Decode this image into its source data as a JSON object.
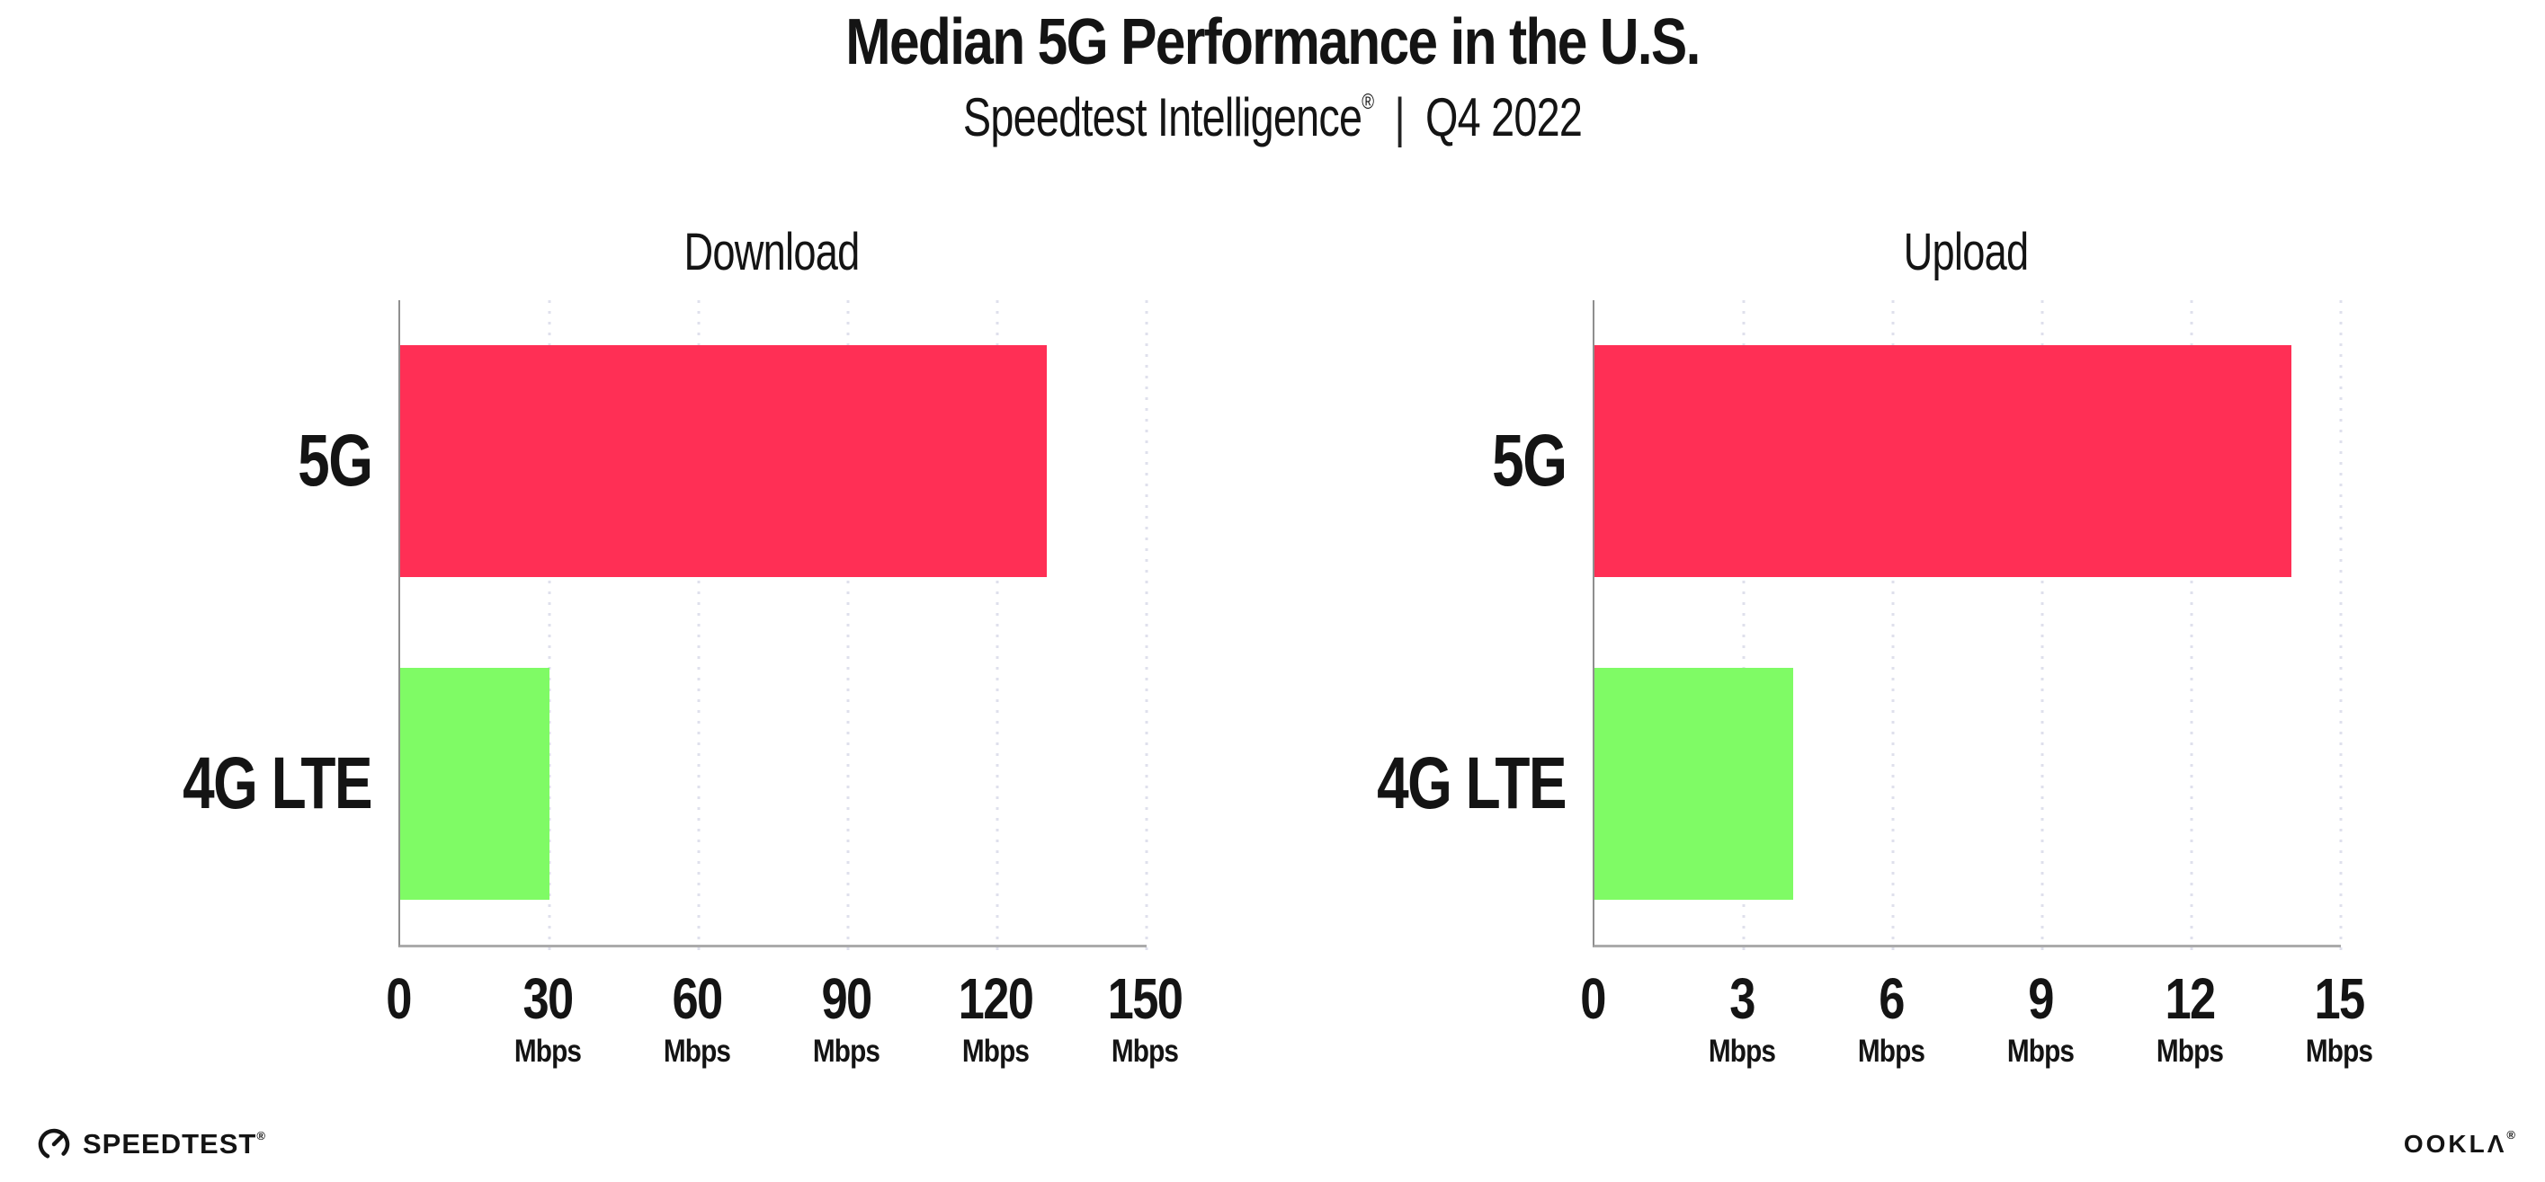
{
  "header": {
    "title": "Median 5G Performance in the U.S.",
    "subtitle": {
      "product": "Speedtest Intelligence",
      "registered_mark": "®",
      "separator": "|",
      "period": "Q4 2022"
    }
  },
  "chart_data": [
    {
      "type": "bar",
      "orientation": "horizontal",
      "title": "Download",
      "categories": [
        "5G",
        "4G LTE"
      ],
      "values": [
        130,
        30
      ],
      "unit": "Mbps",
      "xlim": [
        0,
        150
      ],
      "x_ticks": [
        0,
        30,
        60,
        90,
        120,
        150
      ],
      "bar_colors": [
        "#ff2f55",
        "#7ffb65"
      ],
      "grid": "vertical-dotted",
      "legend_position": "none"
    },
    {
      "type": "bar",
      "orientation": "horizontal",
      "title": "Upload",
      "categories": [
        "5G",
        "4G LTE"
      ],
      "values": [
        14,
        4
      ],
      "unit": "Mbps",
      "xlim": [
        0,
        15
      ],
      "x_ticks": [
        0,
        3,
        6,
        9,
        12,
        15
      ],
      "bar_colors": [
        "#ff2f55",
        "#7ffb65"
      ],
      "grid": "vertical-dotted",
      "legend_position": "none"
    }
  ],
  "footer": {
    "speedtest_logo_text": "SPEEDTEST",
    "speedtest_registered_mark": "®",
    "ookla_logo_text": "OOKLΛ",
    "ookla_registered_mark": "®"
  },
  "colors": {
    "bar_5g": "#ff2f55",
    "bar_4g_lte": "#7ffb65",
    "axis_line": "#9b9b9b",
    "gridline": "#dfe0ec",
    "text": "#141414"
  }
}
